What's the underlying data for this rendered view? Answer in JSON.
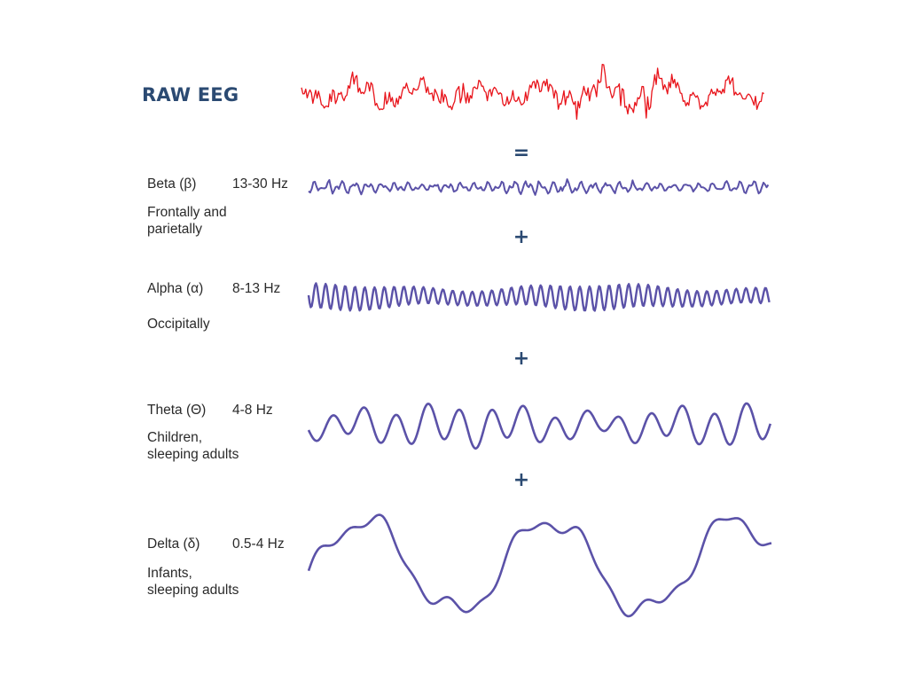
{
  "title": "RAW EEG",
  "operators": [
    "=",
    "+",
    "+",
    "+"
  ],
  "colors": {
    "raw": "#e8141b",
    "band": "#5b52a8",
    "title": "#2b4a72"
  },
  "bands": [
    {
      "id": "beta",
      "name": "Beta (β)",
      "freq": "13-30 Hz",
      "desc_lines": [
        "Frontally and",
        "parietally"
      ]
    },
    {
      "id": "alpha",
      "name": "Alpha (α)",
      "freq": "8-13 Hz",
      "desc_lines": [
        "Occipitally"
      ]
    },
    {
      "id": "theta",
      "name": "Theta (Θ)",
      "freq": "4-8 Hz",
      "desc_lines": [
        "Children,",
        "sleeping adults"
      ]
    },
    {
      "id": "delta",
      "name": "Delta (δ)",
      "freq": "0.5-4 Hz",
      "desc_lines": [
        "Infants,",
        "sleeping adults"
      ]
    }
  ]
}
